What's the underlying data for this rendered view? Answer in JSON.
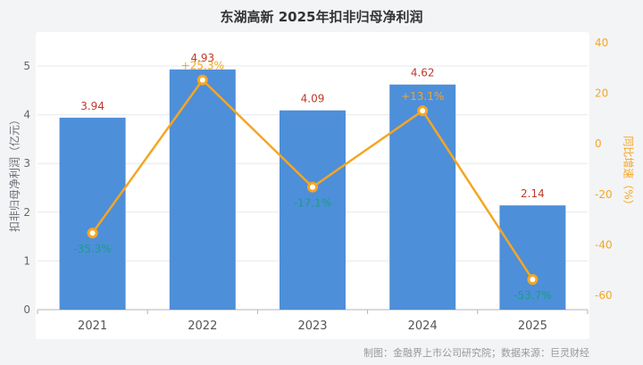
{
  "title": "东湖高新 2025年扣非归母净利润",
  "footer": "制图：金融界上市公司研究院；数据来源：巨灵财经",
  "colors": {
    "bar": "#4e8fd9",
    "line": "#f5a623",
    "bar_label": "#c0392b",
    "positive_label": "#f5a623",
    "negative_label": "#16a085",
    "axis_text": "#666666",
    "right_axis_text": "#f5a623",
    "grid_line": "#e6e9ed",
    "axis_line": "#b0b6bf",
    "x_label": "#555555"
  },
  "chart_data": {
    "type": "bar",
    "categories": [
      "2021",
      "2022",
      "2023",
      "2024",
      "2025"
    ],
    "series": [
      {
        "name": "扣非归母净利润",
        "type": "bar",
        "axis": "left",
        "values": [
          3.94,
          4.93,
          4.09,
          4.62,
          2.14
        ],
        "labels": [
          "3.94",
          "4.93",
          "4.09",
          "4.62",
          "2.14"
        ]
      },
      {
        "name": "同比增速",
        "type": "line",
        "axis": "right",
        "values": [
          -35.3,
          25.3,
          -17.1,
          13.1,
          -53.7
        ],
        "labels": [
          "-35.3%",
          "+25.3%",
          "-17.1%",
          "+13.1%",
          "-53.7%"
        ]
      }
    ],
    "left_axis": {
      "title": "扣非归母净利润（亿元）",
      "min": 0,
      "max": 5,
      "ticks": [
        0,
        1,
        2,
        3,
        4,
        5
      ]
    },
    "right_axis": {
      "title": "同比增速（%）",
      "min": -60,
      "max": 40,
      "ticks": [
        40,
        20,
        0,
        -20,
        -40,
        -60
      ]
    },
    "grid": true,
    "legend": "none"
  }
}
